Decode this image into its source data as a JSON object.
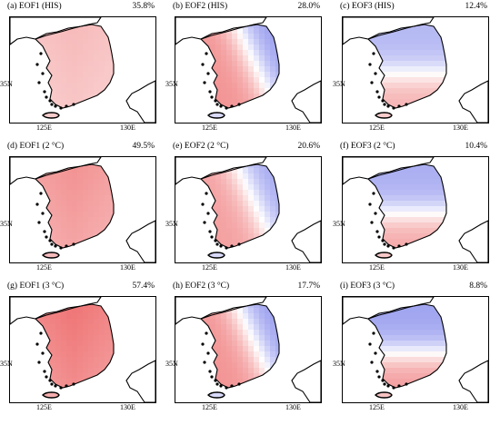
{
  "panels": [
    {
      "title": "(a) EOF1 (HIS)",
      "pct": "35.8%",
      "pattern": "eof1",
      "intensity": 0.35
    },
    {
      "title": "(b) EOF2 (HIS)",
      "pct": "28.0%",
      "pattern": "eof2",
      "intensity": 0.45
    },
    {
      "title": "(c) EOF3 (HIS)",
      "pct": "12.4%",
      "pattern": "eof3",
      "intensity": 0.35
    },
    {
      "title": "(d) EOF1 (2 °C)",
      "pct": "49.5%",
      "pattern": "eof1",
      "intensity": 0.55
    },
    {
      "title": "(e) EOF2 (2 °C)",
      "pct": "20.6%",
      "pattern": "eof2",
      "intensity": 0.4
    },
    {
      "title": "(f) EOF3 (2 °C)",
      "pct": "10.4%",
      "pattern": "eof3",
      "intensity": 0.4
    },
    {
      "title": "(g) EOF1 (3 °C)",
      "pct": "57.4%",
      "pattern": "eof1",
      "intensity": 0.7
    },
    {
      "title": "(h) EOF2 (3 °C)",
      "pct": "17.7%",
      "pattern": "eof2",
      "intensity": 0.45
    },
    {
      "title": "(i) EOF3 (3 °C)",
      "pct": "8.8%",
      "pattern": "eof3",
      "intensity": 0.45
    }
  ],
  "axis": {
    "lat_label": "35N",
    "lon_label_1": "125E",
    "lon_label_2": "130E"
  },
  "colors": {
    "positive": "#e8393a",
    "negative": "#3f48e0",
    "coast": "#000000"
  }
}
